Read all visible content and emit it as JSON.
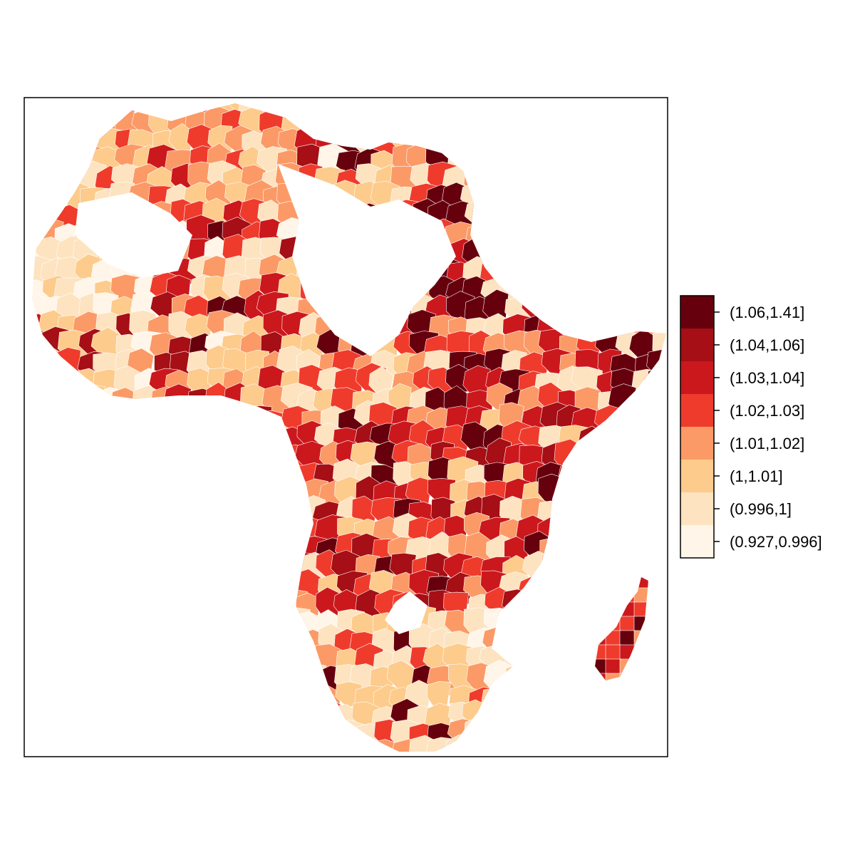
{
  "map": {
    "region": "Africa",
    "type": "choropleth",
    "frame": true
  },
  "legend": {
    "placement": "right",
    "entries": [
      {
        "label": "(1.06,1.41]",
        "color": "#67000d"
      },
      {
        "label": "(1.04,1.06]",
        "color": "#a50f15"
      },
      {
        "label": "(1.03,1.04]",
        "color": "#cb181d"
      },
      {
        "label": "(1.02,1.03]",
        "color": "#ef3b2c"
      },
      {
        "label": "(1.01,1.02]",
        "color": "#fb9a66"
      },
      {
        "label": "(1,1.01]",
        "color": "#fdcb8c"
      },
      {
        "label": "(0.996,1]",
        "color": "#fde3c0"
      },
      {
        "label": "(0.927,0.996]",
        "color": "#fff5e8"
      }
    ]
  },
  "chart_data": {
    "type": "heatmap",
    "categories": [
      "(0.927,0.996]",
      "(0.996,1]",
      "(1,1.01]",
      "(1.01,1.02]",
      "(1.02,1.03]",
      "(1.03,1.04]",
      "(1.04,1.06]",
      "(1.06,1.41]"
    ],
    "legend_placement": "right",
    "grid": false
  }
}
